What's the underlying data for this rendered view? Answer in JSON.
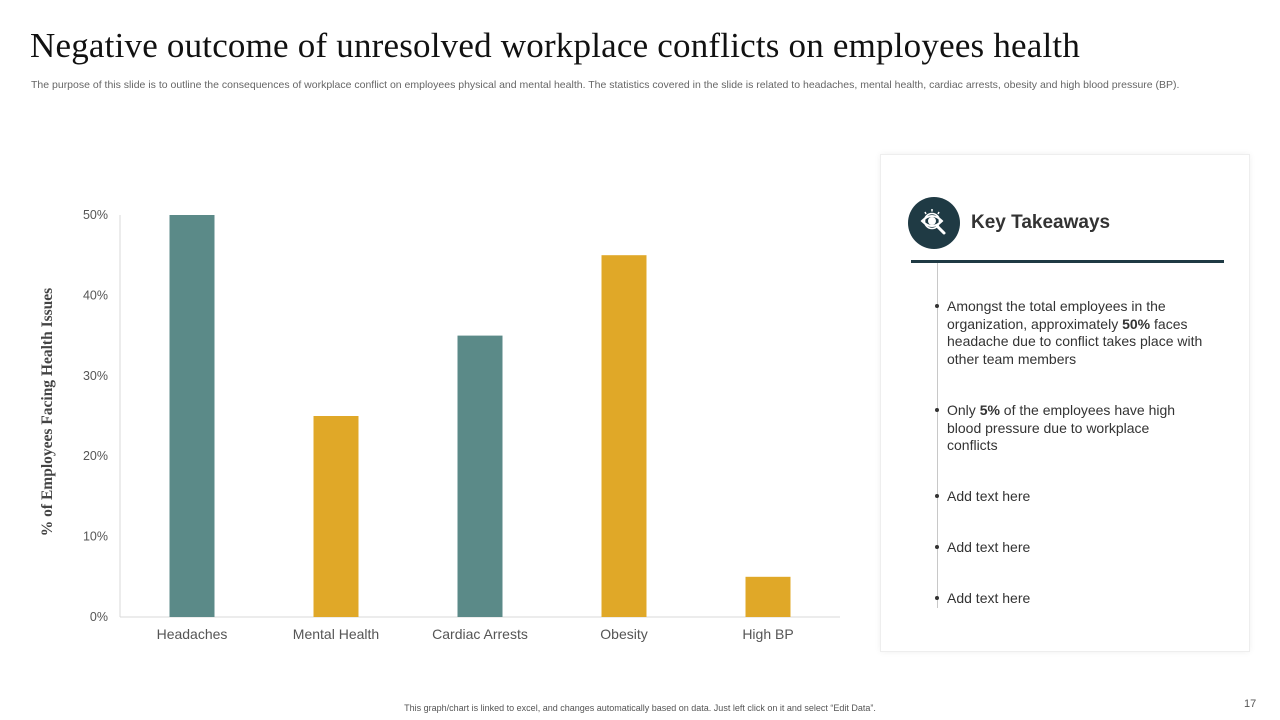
{
  "slide": {
    "title": "Negative outcome of unresolved workplace conflicts on employees health",
    "subtitle": "The purpose of this slide is to outline the consequences of workplace conflict on employees physical and mental health. The statistics covered in the slide is related to headaches, mental health, cardiac arrests, obesity and high blood pressure (BP).",
    "footer": "This graph/chart is linked to excel, and changes automatically based on data. Just left click on it and select “Edit Data”.",
    "page_number": "17"
  },
  "chart_data": {
    "type": "bar",
    "title": "",
    "xlabel": "",
    "ylabel": "% of Employees Facing Health Issues",
    "categories": [
      "Headaches",
      "Mental Health",
      "Cardiac Arrests",
      "Obesity",
      "High BP"
    ],
    "values": [
      50,
      25,
      35,
      45,
      5
    ],
    "bar_colors": [
      "#5b8a88",
      "#e0a828",
      "#5b8a88",
      "#e0a828",
      "#e0a828"
    ],
    "ylim": [
      0,
      50
    ],
    "yticks": [
      0,
      10,
      20,
      30,
      40,
      50
    ],
    "ytick_labels": [
      "0%",
      "10%",
      "20%",
      "30%",
      "40%",
      "50%"
    ],
    "grid": false,
    "legend": "none"
  },
  "takeaways": {
    "title": "Key Takeaways",
    "icon": "eye-magnifier-icon",
    "accent_color": "#1f3a44",
    "items": [
      {
        "before": "Amongst the total employees in the organization, approximately ",
        "bold": "50%",
        "after": " faces headache due to conflict takes place with other team members"
      },
      {
        "before": "Only ",
        "bold": "5%",
        "after": " of the employees have high blood pressure due to workplace conflicts"
      },
      {
        "before": "Add text here",
        "bold": "",
        "after": ""
      },
      {
        "before": "Add text here",
        "bold": "",
        "after": ""
      },
      {
        "before": "Add text here",
        "bold": "",
        "after": ""
      }
    ]
  }
}
